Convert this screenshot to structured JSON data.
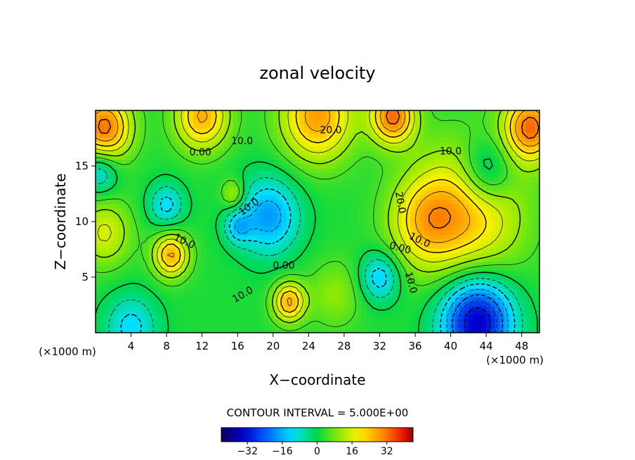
{
  "chart_data": {
    "type": "heatmap",
    "title": "zonal velocity",
    "xlabel": "X−coordinate",
    "ylabel": "Z−coordinate",
    "x_unit_left": "(×1000 m)",
    "x_unit_right": "(×1000 m)",
    "xlim": [
      0,
      50
    ],
    "ylim": [
      0,
      20
    ],
    "x_ticks": [
      4,
      8,
      12,
      16,
      20,
      24,
      28,
      32,
      36,
      40,
      44,
      48
    ],
    "y_ticks": [
      5,
      10,
      15
    ],
    "contour_interval_text": "CONTOUR INTERVAL = 5.000E+00",
    "colorbar": {
      "range": [
        -44,
        44
      ],
      "ticks": [
        -32,
        -16,
        0,
        16,
        32
      ],
      "tick_labels": [
        "−32",
        "−16",
        "0",
        "16",
        "32"
      ]
    },
    "contour_labels": [
      {
        "text": "20.0",
        "x": 26.5,
        "y": 18.2,
        "rot": 0
      },
      {
        "text": "10.0",
        "x": 16.5,
        "y": 17.2,
        "rot": 0
      },
      {
        "text": "0.00",
        "x": 11.8,
        "y": 16.2,
        "rot": 0
      },
      {
        "text": "10.0",
        "x": 40.0,
        "y": 16.3,
        "rot": 0
      },
      {
        "text": "20.0",
        "x": 34.3,
        "y": 11.7,
        "rot": 80
      },
      {
        "text": "10.0",
        "x": 17.3,
        "y": 11.3,
        "rot": -35
      },
      {
        "text": "10.0",
        "x": 10.0,
        "y": 8.2,
        "rot": 25
      },
      {
        "text": "10.0",
        "x": 36.5,
        "y": 8.3,
        "rot": 25
      },
      {
        "text": "0.00",
        "x": 34.3,
        "y": 7.6,
        "rot": 15
      },
      {
        "text": "0.00",
        "x": 21.2,
        "y": 6.0,
        "rot": 0
      },
      {
        "text": "10.0",
        "x": 35.5,
        "y": 4.5,
        "rot": 75
      },
      {
        "text": "10.0",
        "x": 16.6,
        "y": 3.4,
        "rot": -30
      }
    ],
    "field_sources": [
      {
        "x": 25,
        "y": 19.5,
        "amp": 26,
        "r": 4
      },
      {
        "x": 1,
        "y": 18.5,
        "amp": 30,
        "r": 3
      },
      {
        "x": 49,
        "y": 18.5,
        "amp": 30,
        "r": 3
      },
      {
        "x": 33.5,
        "y": 19.5,
        "amp": 30,
        "r": 2.5
      },
      {
        "x": 12,
        "y": 19.5,
        "amp": 24,
        "r": 3
      },
      {
        "x": 42,
        "y": 11,
        "amp": 22,
        "r": 6
      },
      {
        "x": 37,
        "y": 10,
        "amp": 16,
        "r": 4
      },
      {
        "x": 8.5,
        "y": 7,
        "amp": 24,
        "r": 2
      },
      {
        "x": 21.8,
        "y": 2.8,
        "amp": 24,
        "r": 1.8
      },
      {
        "x": 1,
        "y": 9,
        "amp": 14,
        "r": 3
      },
      {
        "x": 15.5,
        "y": 12.5,
        "amp": 12,
        "r": 1.3
      },
      {
        "x": 19.5,
        "y": 10.5,
        "amp": -20,
        "r": 3.5
      },
      {
        "x": 16,
        "y": 9.5,
        "amp": -12,
        "r": 1.5
      },
      {
        "x": 8,
        "y": 11.5,
        "amp": -14,
        "r": 2
      },
      {
        "x": 32,
        "y": 5,
        "amp": -16,
        "r": 2.2
      },
      {
        "x": 43,
        "y": 1,
        "amp": -38,
        "r": 4
      },
      {
        "x": 44,
        "y": 14.5,
        "amp": -16,
        "r": 3
      },
      {
        "x": 0.5,
        "y": 14.5,
        "amp": -14,
        "r": 2
      },
      {
        "x": 4,
        "y": 0.5,
        "amp": -14,
        "r": 3
      },
      {
        "x": 27,
        "y": 3.5,
        "amp": 8,
        "r": 3
      }
    ]
  }
}
